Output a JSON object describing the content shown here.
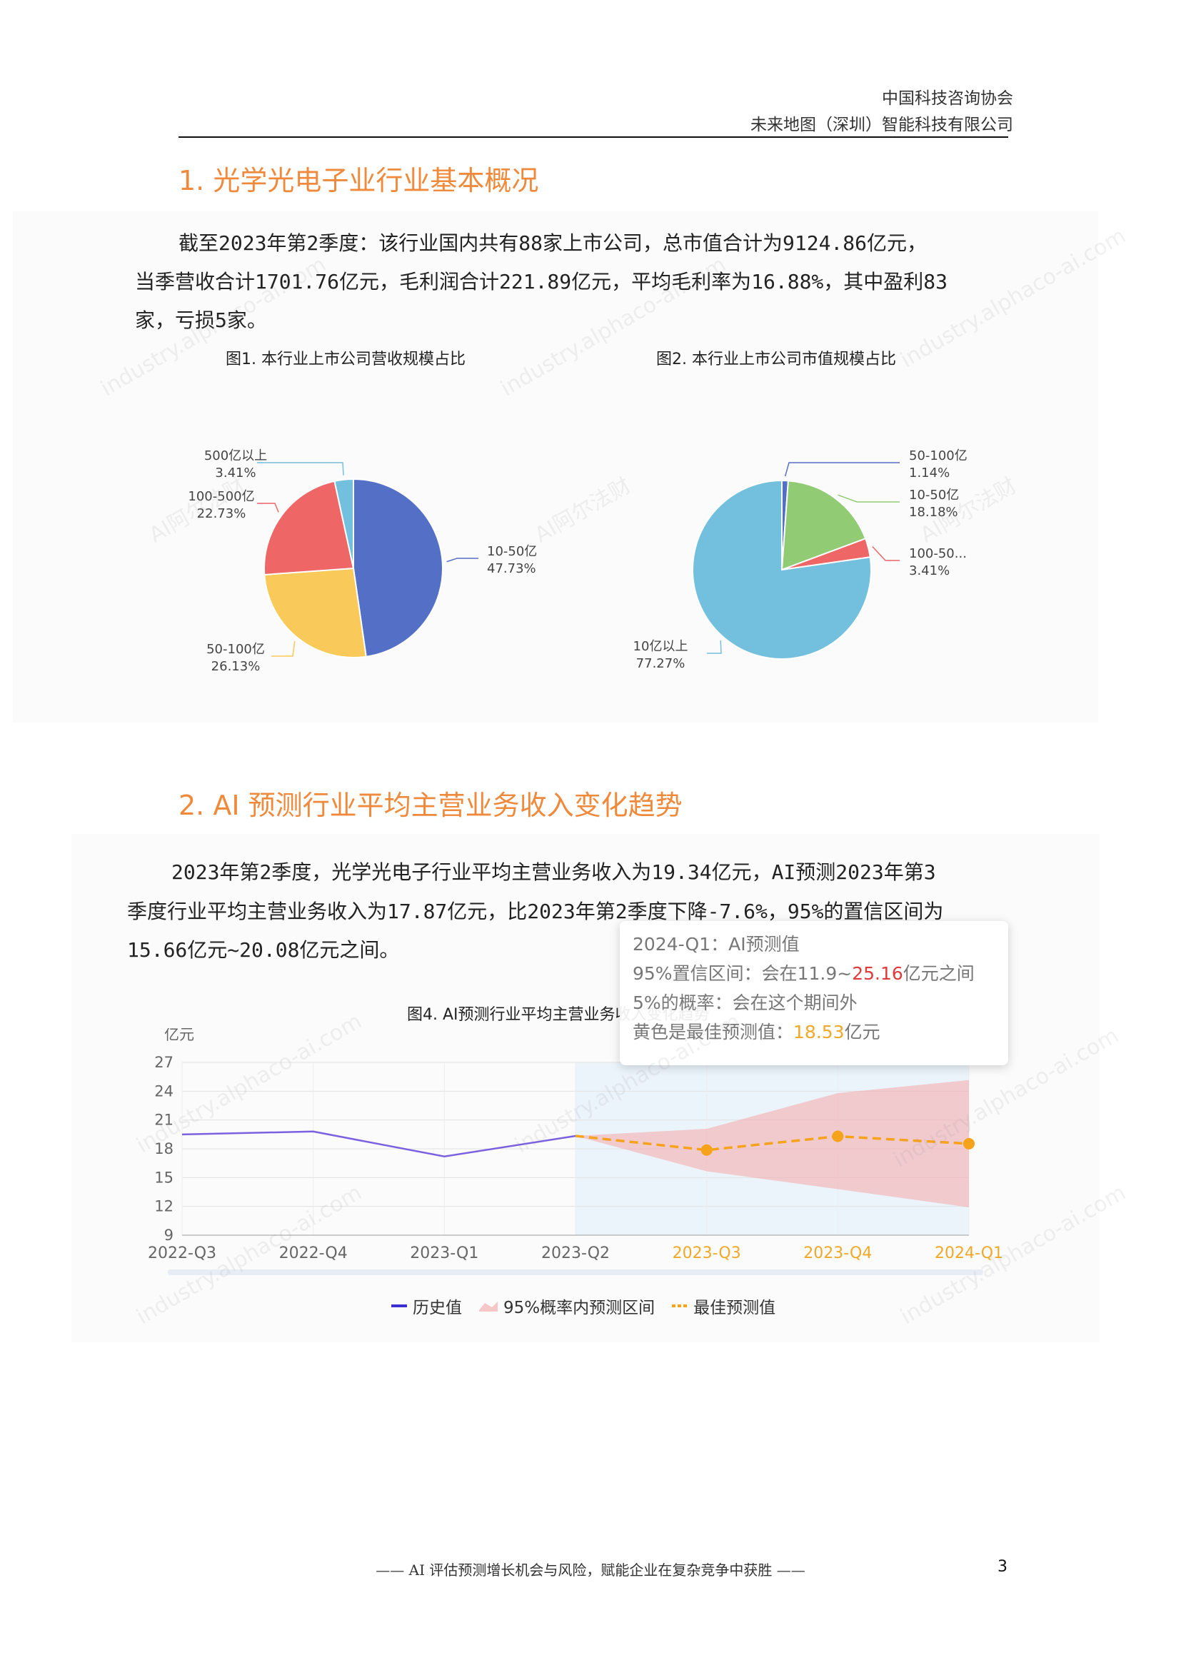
{
  "header": {
    "line1": "中国科技咨询协会",
    "line2": "未来地图（深圳）智能科技有限公司"
  },
  "section1": {
    "title": "1. 光学光电子业行业基本概况",
    "para_lines": [
      "截至2023年第2季度：该行业国内共有88家上市公司，总市值合计为9124.86亿元，",
      "当季营收合计1701.76亿元，毛利润合计221.89亿元，平均毛利率为16.88%，其中盈利83",
      "家，亏损5家。"
    ]
  },
  "section2": {
    "title": "2. AI 预测行业平均主营业务收入变化趋势",
    "para_lines": [
      "2023年第2季度，光学光电子行业平均主营业务收入为19.34亿元，AI预测2023年第3",
      "季度行业平均主营业务收入为17.87亿元，比2023年第2季度下降-7.6%，95%的置信区间为",
      "15.66亿元~20.08亿元之间。"
    ]
  },
  "tooltip": {
    "line1": "2024-Q1：AI预测值",
    "line2_prefix": "95%置信区间：会在11.9~",
    "line2_red": "25.16",
    "line2_suffix": "亿元之间",
    "line3": "5%的概率：会在这个期间外",
    "line4_prefix": "黄色是最佳预测值：",
    "line4_val": "18.53",
    "line4_suffix": "亿元"
  },
  "watermark": {
    "a": "AI阿尔法财",
    "b": "industry.alphaco-ai.com"
  },
  "footer": {
    "text": "—— AI 评估预测增长机会与风险，赋能企业在复杂竞争中获胜 ——",
    "page": "3"
  },
  "colors": {
    "accent": "#ef8a3c",
    "blue": "#5470c6",
    "yellow": "#f9c959",
    "red": "#ee6666",
    "lightblue": "#73c0de",
    "green": "#91cc75",
    "purple": "#7b61e0",
    "orange": "#f7a21b"
  },
  "chart_data": [
    {
      "type": "pie",
      "title": "图1. 本行业上市公司营收规模占比",
      "slices": [
        {
          "label": "10-50亿",
          "value": 47.73,
          "display": "47.73%",
          "color": "#5470c6"
        },
        {
          "label": "50-100亿",
          "value": 26.13,
          "display": "26.13%",
          "color": "#f9c959"
        },
        {
          "label": "100-500亿",
          "value": 22.73,
          "display": "22.73%",
          "color": "#ee6666"
        },
        {
          "label": "500亿以上",
          "value": 3.41,
          "display": "3.41%",
          "color": "#73c0de"
        }
      ]
    },
    {
      "type": "pie",
      "title": "图2. 本行业上市公司市值规模占比",
      "slices": [
        {
          "label": "50-100亿",
          "value": 1.14,
          "display": "1.14%",
          "color": "#5470c6"
        },
        {
          "label": "10-50亿",
          "value": 18.18,
          "display": "18.18%",
          "color": "#91cc75"
        },
        {
          "label": "100-50...",
          "value": 3.41,
          "display": "3.41%",
          "color": "#ee6666"
        },
        {
          "label": "10亿以上",
          "value": 77.27,
          "display": "77.27%",
          "color": "#73c0de"
        }
      ]
    },
    {
      "type": "line",
      "title": "图4. AI预测行业平均主营业务收入变化趋势",
      "ylabel": "亿元",
      "ylim": [
        9,
        27
      ],
      "yticks": [
        9,
        12,
        15,
        18,
        21,
        24,
        27
      ],
      "categories": [
        "2022-Q3",
        "2022-Q4",
        "2023-Q1",
        "2023-Q2",
        "2023-Q3",
        "2023-Q4",
        "2024-Q1"
      ],
      "series": [
        {
          "name": "历史值",
          "values": [
            19.5,
            19.8,
            17.2,
            19.34,
            null,
            null,
            null
          ]
        },
        {
          "name": "最佳预测值",
          "values": [
            null,
            null,
            null,
            19.34,
            17.87,
            19.3,
            18.53
          ]
        },
        {
          "name": "95%概率内预测区间",
          "lower": [
            null,
            null,
            null,
            19.34,
            15.66,
            13.8,
            11.9
          ],
          "upper": [
            null,
            null,
            null,
            19.34,
            20.08,
            23.8,
            25.16
          ]
        }
      ]
    }
  ]
}
